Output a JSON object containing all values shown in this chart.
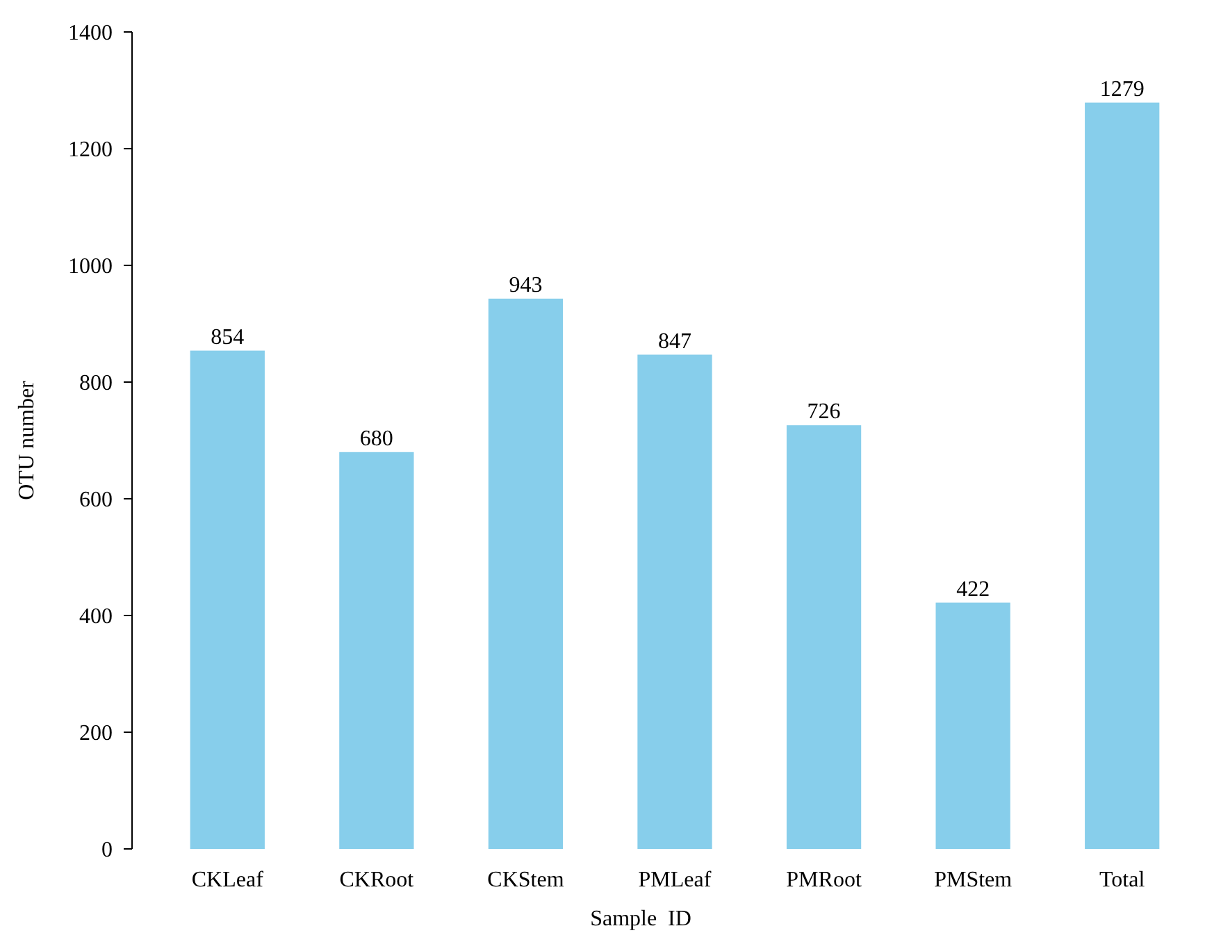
{
  "chart_data": {
    "type": "bar",
    "xlabel": "Sample  ID",
    "ylabel": "OTU number",
    "categories": [
      "CKLeaf",
      "CKRoot",
      "CKStem",
      "PMLeaf",
      "PMRoot",
      "PMStem",
      "Total"
    ],
    "values": [
      854,
      680,
      943,
      847,
      726,
      422,
      1279
    ],
    "color": "#87ceeb",
    "ylim": [
      0,
      1400
    ],
    "yticks": [
      0,
      200,
      400,
      600,
      800,
      1000,
      1200,
      1400
    ],
    "data_labels": true
  }
}
